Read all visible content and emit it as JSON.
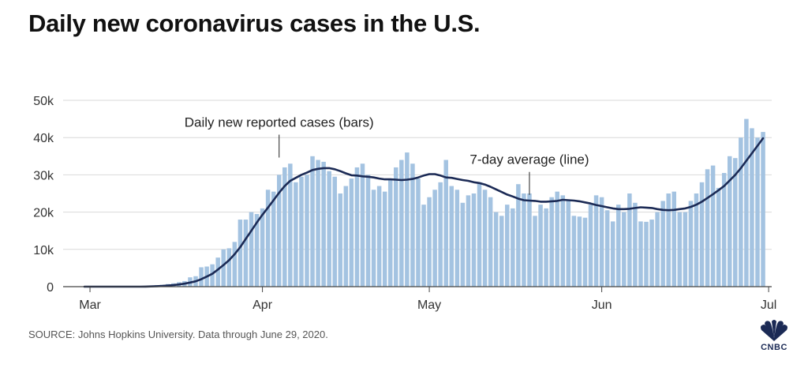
{
  "title": "Daily new coronavirus cases in the U.S.",
  "source": "SOURCE: Johns Hopkins University. Data through June 29, 2020.",
  "logo_text": "CNBC",
  "colors": {
    "bar": "#a4c3e1",
    "line": "#1b2a55",
    "grid": "#d9d9d9",
    "axis": "#444444"
  },
  "chart_data": {
    "type": "bar",
    "x_start": "2020-02-29",
    "x_end": "2020-06-29",
    "x_ticks": [
      {
        "label": "Mar",
        "day": "2020-03-01"
      },
      {
        "label": "Apr",
        "day": "2020-04-01"
      },
      {
        "label": "May",
        "day": "2020-05-01"
      },
      {
        "label": "Jun",
        "day": "2020-06-01"
      },
      {
        "label": "Jul",
        "day": "2020-07-01"
      }
    ],
    "y_ticks": [
      {
        "label": "0",
        "value": 0
      },
      {
        "label": "10k",
        "value": 10000
      },
      {
        "label": "20k",
        "value": 20000
      },
      {
        "label": "30k",
        "value": 30000
      },
      {
        "label": "40k",
        "value": 40000
      },
      {
        "label": "50k",
        "value": 50000
      }
    ],
    "ylim": [
      0,
      50000
    ],
    "grid": true,
    "series": [
      {
        "type": "bar",
        "values": [
          0,
          0,
          0,
          0,
          0,
          0,
          0,
          0,
          0,
          0,
          0,
          200,
          300,
          400,
          500,
          700,
          900,
          1200,
          1500,
          2500,
          2800,
          5200,
          5400,
          6000,
          7800,
          10000,
          10300,
          12000,
          18000,
          18000,
          20000,
          19500,
          21000,
          26000,
          25500,
          30000,
          32000,
          33000,
          28000,
          29500,
          30000,
          35000,
          34000,
          33500,
          31000,
          29500,
          25000,
          27000,
          29000,
          32000,
          33000,
          30000,
          26000,
          27000,
          25500,
          29000,
          32000,
          34000,
          36000,
          33000,
          29000,
          22000,
          24000,
          26000,
          28000,
          34000,
          27000,
          26000,
          22500,
          24500,
          25000,
          28000,
          26000,
          24000,
          20000,
          19000,
          22000,
          21000,
          27500,
          25000,
          25000,
          19000,
          22000,
          21000,
          24000,
          25500,
          24500,
          23000,
          19000,
          18800,
          18500,
          22000,
          24500,
          24000,
          20500,
          17500,
          22000,
          20000,
          25000,
          22500,
          17500,
          17400,
          18000,
          20000,
          23000,
          25000,
          25500,
          20000,
          20000,
          23000,
          25000,
          28000,
          31500,
          32500,
          26500,
          30500,
          35000,
          34500,
          40000,
          45000,
          42500,
          40000,
          41500
        ]
      },
      {
        "type": "line",
        "values": [
          0,
          0,
          0,
          0,
          0,
          0,
          0,
          0,
          0,
          0,
          0,
          30,
          73,
          130,
          200,
          300,
          429,
          600,
          814,
          1100,
          1443,
          2000,
          2714,
          3443,
          4600,
          5800,
          7100,
          8700,
          10600,
          12800,
          15000,
          17200,
          19300,
          21200,
          23200,
          25200,
          27000,
          28400,
          29200,
          30000,
          30600,
          31300,
          31600,
          31800,
          31800,
          31500,
          31000,
          30400,
          29900,
          29800,
          29600,
          29500,
          29300,
          29000,
          28800,
          28800,
          28700,
          28600,
          28700,
          28900,
          29300,
          29800,
          30200,
          30200,
          29800,
          29300,
          29200,
          28900,
          28600,
          28400,
          28000,
          27800,
          27400,
          26800,
          26100,
          25400,
          24700,
          24200,
          23600,
          23200,
          23100,
          23000,
          22800,
          22800,
          22900,
          23000,
          23300,
          23200,
          23100,
          22900,
          22600,
          22300,
          21900,
          21600,
          21300,
          21000,
          20800,
          20800,
          20900,
          21100,
          21300,
          21200,
          21100,
          20800,
          20600,
          20500,
          20600,
          20800,
          21000,
          21400,
          22000,
          22800,
          23800,
          24800,
          25900,
          27000,
          28500,
          30000,
          31800,
          33800,
          35800,
          37800,
          39800
        ]
      }
    ],
    "annotations": [
      {
        "text": "Daily new reported cases (bars)",
        "day": "2020-04-04",
        "value": 34000
      },
      {
        "text": "7-day average (line)",
        "day": "2020-05-19",
        "value": 24000
      }
    ]
  }
}
